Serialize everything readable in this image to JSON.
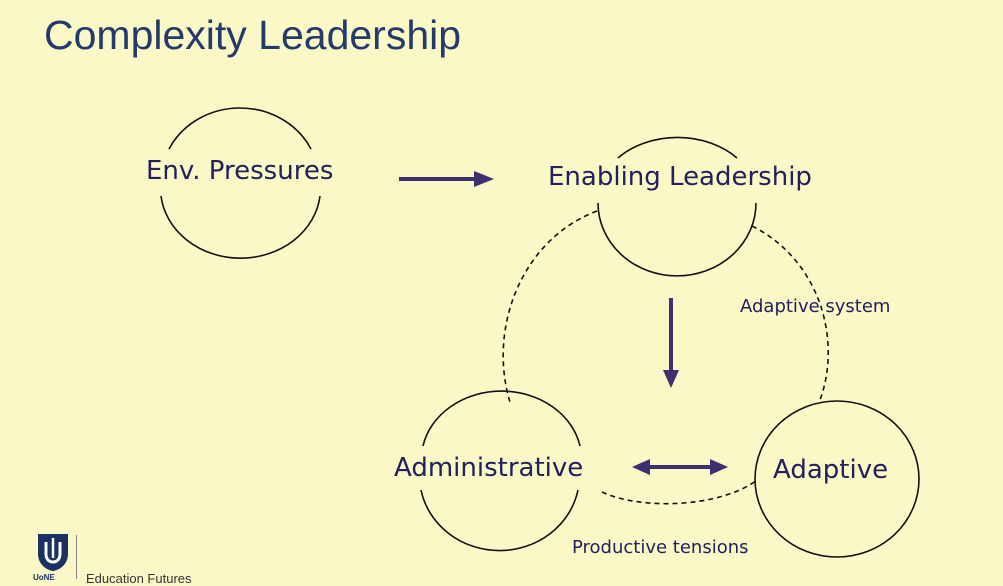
{
  "slide": {
    "title": "Complexity Leadership"
  },
  "diagram": {
    "nodes": {
      "env_pressures": "Env. Pressures",
      "enabling_leadership": "Enabling Leadership",
      "administrative": "Administrative",
      "adaptive": "Adaptive"
    },
    "annotations": {
      "adaptive_system": "Adaptive system",
      "productive_tensions": "Productive tensions"
    },
    "colors": {
      "arrow": "#3d2f70",
      "text": "#23205b",
      "background": "#fbf8c8"
    }
  },
  "footer": {
    "org_name": "UoNE",
    "text": "Education Futures",
    "logo_icon": "university-shield-logo-icon"
  }
}
